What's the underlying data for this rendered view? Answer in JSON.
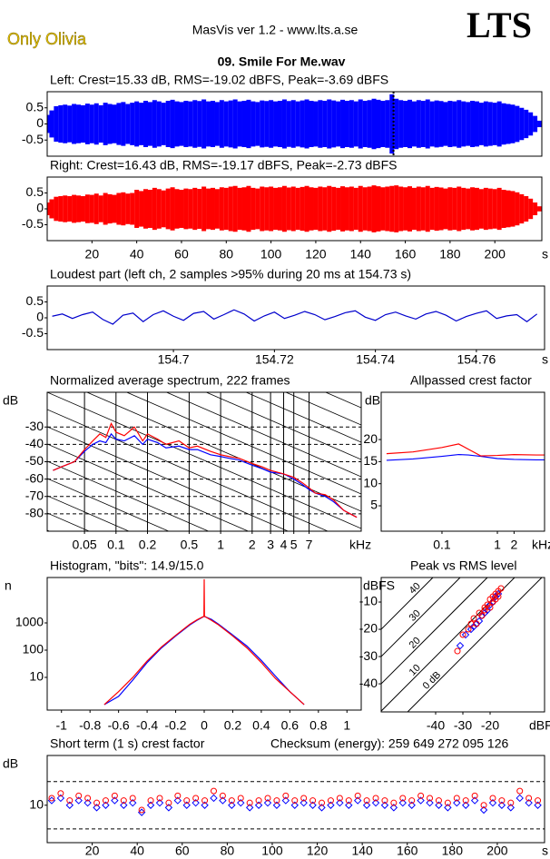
{
  "header": {
    "left_logo": "Only Olivia",
    "app": "MasVis ver 1.2 - www.lts.a.se",
    "brand": "LTS",
    "file": "09. Smile For Me.wav"
  },
  "chart_data": [
    {
      "type": "waveform",
      "title": "Left: Crest=15.33 dB, RMS=-19.02 dBFS, Peak=-3.69 dBFS",
      "color": "#0000ff",
      "xlim": [
        0,
        221
      ],
      "ylim": [
        -1,
        1
      ],
      "yticks": [
        0.5,
        0,
        -0.5
      ],
      "marker_x": 154.73,
      "x": [
        0,
        2,
        4,
        6,
        8,
        10,
        12,
        14,
        16,
        18,
        20,
        22,
        24,
        26,
        28,
        30,
        32,
        34,
        36,
        38,
        40,
        42,
        44,
        46,
        48,
        50,
        52,
        54,
        56,
        58,
        60,
        62,
        64,
        66,
        68,
        70,
        72,
        74,
        76,
        78,
        80,
        82,
        84,
        86,
        88,
        90,
        92,
        94,
        96,
        98,
        100,
        102,
        104,
        106,
        108,
        110,
        112,
        114,
        116,
        118,
        120,
        122,
        124,
        126,
        128,
        130,
        132,
        134,
        136,
        138,
        140,
        142,
        144,
        146,
        148,
        150,
        152,
        154,
        156,
        158,
        160,
        162,
        164,
        166,
        168,
        170,
        172,
        174,
        176,
        178,
        180,
        182,
        184,
        186,
        188,
        190,
        192,
        194,
        196,
        198,
        200,
        202,
        204,
        206,
        208,
        210,
        212,
        214,
        216,
        218,
        220
      ],
      "values": [
        0.28,
        0.42,
        0.55,
        0.58,
        0.6,
        0.57,
        0.62,
        0.6,
        0.58,
        0.63,
        0.6,
        0.64,
        0.58,
        0.66,
        0.62,
        0.6,
        0.65,
        0.68,
        0.62,
        0.66,
        0.7,
        0.66,
        0.72,
        0.68,
        0.74,
        0.7,
        0.66,
        0.72,
        0.75,
        0.7,
        0.68,
        0.72,
        0.7,
        0.74,
        0.71,
        0.76,
        0.7,
        0.72,
        0.68,
        0.74,
        0.7,
        0.73,
        0.76,
        0.7,
        0.72,
        0.75,
        0.7,
        0.68,
        0.73,
        0.71,
        0.74,
        0.7,
        0.72,
        0.76,
        0.71,
        0.74,
        0.7,
        0.73,
        0.76,
        0.72,
        0.7,
        0.74,
        0.72,
        0.76,
        0.73,
        0.7,
        0.75,
        0.72,
        0.74,
        0.7,
        0.76,
        0.72,
        0.74,
        0.78,
        0.75,
        0.72,
        0.74,
        0.92,
        0.78,
        0.74,
        0.72,
        0.75,
        0.7,
        0.74,
        0.72,
        0.76,
        0.7,
        0.73,
        0.71,
        0.68,
        0.72,
        0.7,
        0.74,
        0.7,
        0.68,
        0.72,
        0.7,
        0.66,
        0.7,
        0.68,
        0.66,
        0.7,
        0.64,
        0.62,
        0.6,
        0.56,
        0.5,
        0.44,
        0.36,
        0.25,
        0.1
      ]
    },
    {
      "type": "waveform",
      "title": "Right: Crest=16.43 dB, RMS=-19.17 dBFS, Peak=-2.73 dBFS",
      "color": "#ff0000",
      "xlim": [
        0,
        221
      ],
      "ylim": [
        -1,
        1
      ],
      "yticks": [
        0.5,
        0,
        -0.5
      ],
      "xticks": [
        20,
        40,
        60,
        80,
        100,
        120,
        140,
        160,
        180,
        200
      ],
      "xlabel": "s",
      "x": [
        0,
        2,
        4,
        6,
        8,
        10,
        12,
        14,
        16,
        18,
        20,
        22,
        24,
        26,
        28,
        30,
        32,
        34,
        36,
        38,
        40,
        42,
        44,
        46,
        48,
        50,
        52,
        54,
        56,
        58,
        60,
        62,
        64,
        66,
        68,
        70,
        72,
        74,
        76,
        78,
        80,
        82,
        84,
        86,
        88,
        90,
        92,
        94,
        96,
        98,
        100,
        102,
        104,
        106,
        108,
        110,
        112,
        114,
        116,
        118,
        120,
        122,
        124,
        126,
        128,
        130,
        132,
        134,
        136,
        138,
        140,
        142,
        144,
        146,
        148,
        150,
        152,
        154,
        156,
        158,
        160,
        162,
        164,
        166,
        168,
        170,
        172,
        174,
        176,
        178,
        180,
        182,
        184,
        186,
        188,
        190,
        192,
        194,
        196,
        198,
        200,
        202,
        204,
        206,
        208,
        210,
        212,
        214,
        216,
        218,
        220
      ],
      "values": [
        0.2,
        0.3,
        0.38,
        0.4,
        0.42,
        0.4,
        0.44,
        0.42,
        0.4,
        0.45,
        0.44,
        0.48,
        0.42,
        0.5,
        0.46,
        0.44,
        0.5,
        0.52,
        0.48,
        0.5,
        0.6,
        0.56,
        0.62,
        0.6,
        0.66,
        0.62,
        0.58,
        0.64,
        0.68,
        0.62,
        0.6,
        0.64,
        0.62,
        0.66,
        0.63,
        0.7,
        0.64,
        0.66,
        0.62,
        0.68,
        0.66,
        0.7,
        0.72,
        0.66,
        0.68,
        0.72,
        0.66,
        0.64,
        0.7,
        0.68,
        0.7,
        0.66,
        0.68,
        0.72,
        0.67,
        0.7,
        0.66,
        0.69,
        0.72,
        0.68,
        0.66,
        0.7,
        0.68,
        0.72,
        0.69,
        0.66,
        0.71,
        0.68,
        0.7,
        0.66,
        0.72,
        0.68,
        0.7,
        0.74,
        0.71,
        0.68,
        0.7,
        0.72,
        0.74,
        0.7,
        0.68,
        0.71,
        0.66,
        0.7,
        0.68,
        0.72,
        0.66,
        0.69,
        0.67,
        0.64,
        0.68,
        0.66,
        0.7,
        0.66,
        0.64,
        0.68,
        0.66,
        0.62,
        0.66,
        0.64,
        0.62,
        0.66,
        0.6,
        0.58,
        0.56,
        0.52,
        0.46,
        0.4,
        0.32,
        0.2,
        0.08
      ]
    },
    {
      "type": "line",
      "title": "Loudest part (left  ch, 2 samples >95% during 20 ms at 154.73 s)",
      "xlim": [
        154.675,
        154.7735
      ],
      "ylim": [
        -1,
        1
      ],
      "yticks": [
        0.5,
        0,
        -0.5
      ],
      "xticks": [
        154.7,
        154.72,
        154.74,
        154.76
      ],
      "xlabel": "s",
      "x": [
        154.676,
        154.678,
        154.68,
        154.682,
        154.684,
        154.686,
        154.688,
        154.69,
        154.692,
        154.694,
        154.696,
        154.698,
        154.7,
        154.702,
        154.704,
        154.706,
        154.708,
        154.71,
        154.712,
        154.714,
        154.716,
        154.718,
        154.72,
        154.722,
        154.724,
        154.726,
        154.728,
        154.73,
        154.732,
        154.734,
        154.736,
        154.738,
        154.74,
        154.742,
        154.744,
        154.746,
        154.748,
        154.75,
        154.752,
        154.754,
        154.756,
        154.758,
        154.76,
        154.762,
        154.764,
        154.766,
        154.768,
        154.77,
        154.772
      ],
      "series": [
        {
          "color": "#0000cc",
          "values": [
            0.05,
            0.12,
            -0.02,
            0.1,
            0.18,
            -0.05,
            -0.2,
            0.08,
            0.15,
            -0.12,
            0.1,
            0.22,
            0.05,
            -0.08,
            0.14,
            0.2,
            -0.04,
            0.1,
            0.25,
            0.12,
            -0.1,
            0.06,
            0.18,
            -0.02,
            0.08,
            0.2,
            0.1,
            -0.06,
            0.04,
            0.16,
            0.22,
            0.02,
            -0.08,
            0.1,
            0.18,
            0.06,
            -0.04,
            0.12,
            0.2,
            0.08,
            -0.1,
            0.04,
            0.14,
            0.22,
            -0.02,
            0.06,
            0.1,
            -0.12,
            0.12
          ]
        }
      ]
    },
    {
      "type": "line",
      "title": "Normalized average spectrum, 222 frames",
      "xscale": "log",
      "xlim": [
        0.022,
        22.05
      ],
      "ylim": [
        -90,
        -10
      ],
      "yticks": [
        -30,
        -40,
        -50,
        -60,
        -70,
        -80
      ],
      "ygrid": "dashed",
      "xgrid": true,
      "ylabel": "dB",
      "xlabel": "kHz",
      "xticks": [
        0.05,
        0.1,
        0.2,
        0.5,
        1,
        2,
        3,
        4,
        5,
        7
      ],
      "x": [
        0.025,
        0.03,
        0.04,
        0.05,
        0.06,
        0.07,
        0.08,
        0.09,
        0.1,
        0.12,
        0.15,
        0.18,
        0.2,
        0.25,
        0.3,
        0.4,
        0.5,
        0.6,
        0.8,
        1,
        1.2,
        1.5,
        2,
        2.5,
        3,
        4,
        5,
        6,
        7,
        8,
        10,
        12,
        15,
        20
      ],
      "series": [
        {
          "color": "#0000ff",
          "values": [
            -55,
            -53,
            -50,
            -44,
            -40,
            -38,
            -39,
            -34,
            -37,
            -38,
            -35,
            -40,
            -37,
            -39,
            -42,
            -41,
            -43,
            -43,
            -46,
            -47,
            -48,
            -49,
            -52,
            -54,
            -56,
            -57,
            -60,
            -63,
            -66,
            -68,
            -70,
            -73,
            -78,
            -82
          ]
        },
        {
          "color": "#ff0000",
          "values": [
            -55,
            -53,
            -50,
            -43,
            -38,
            -34,
            -36,
            -28,
            -33,
            -35,
            -30,
            -38,
            -34,
            -37,
            -40,
            -38,
            -42,
            -41,
            -44,
            -46,
            -47,
            -48,
            -51,
            -53,
            -55,
            -57,
            -59,
            -62,
            -65,
            -68,
            -69,
            -72,
            -78,
            -82
          ]
        }
      ]
    },
    {
      "type": "line",
      "title": "Allpassed crest factor",
      "xscale": "log",
      "xlim": [
        0.008,
        7.1
      ],
      "ylim": [
        -0.75,
        30.7
      ],
      "yticks": [
        20,
        15,
        10,
        5
      ],
      "ylabel": "dB",
      "xlabel": "kHz",
      "xticks": [
        0.1,
        1,
        2
      ],
      "x": [
        0.01,
        0.03,
        0.1,
        0.2,
        0.3,
        0.5,
        1,
        2,
        5,
        7
      ],
      "series": [
        {
          "color": "#0000ff",
          "values": [
            15.3,
            15.6,
            16.2,
            16.6,
            16.5,
            16.2,
            15.7,
            15.5,
            15.4,
            15.4
          ]
        },
        {
          "color": "#ff0000",
          "values": [
            16.8,
            17.2,
            18.2,
            19,
            17.8,
            16.3,
            16.4,
            16.6,
            16.5,
            16.5
          ]
        }
      ]
    },
    {
      "type": "line",
      "title": "Histogram, \"bits\": 14.9/15.0",
      "yscale": "log",
      "xlim": [
        -1.1,
        1.1
      ],
      "ylim": [
        0.63,
        46400
      ],
      "yticks": [
        10,
        100,
        1000
      ],
      "ylabel": "n",
      "xticks": [
        -1,
        -0.8,
        -0.6,
        -0.4,
        -0.2,
        0,
        0.2,
        0.4,
        0.6,
        0.8,
        1
      ],
      "x": [
        -0.7,
        -0.6,
        -0.5,
        -0.4,
        -0.3,
        -0.2,
        -0.1,
        -0.05,
        -0.002,
        0,
        0.002,
        0.05,
        0.1,
        0.2,
        0.3,
        0.4,
        0.5,
        0.6,
        0.7
      ],
      "series": [
        {
          "color": "#0000ff",
          "values": [
            1,
            2,
            8,
            35,
            120,
            330,
            850,
            1250,
            1720,
            1750,
            1720,
            1350,
            900,
            360,
            140,
            42,
            11,
            3,
            1
          ]
        },
        {
          "color": "#ff0000",
          "values": [
            1,
            3,
            10,
            40,
            130,
            350,
            900,
            1300,
            1750,
            40000,
            1750,
            1250,
            850,
            330,
            120,
            35,
            9,
            3,
            1
          ]
        }
      ]
    },
    {
      "type": "scatter",
      "title": "Peak vs RMS level",
      "xlim": [
        -60,
        0
      ],
      "ylim": [
        -50.3,
        -1
      ],
      "yticks": [
        -10,
        -20,
        -30,
        -40
      ],
      "xticks": [
        -40,
        -30,
        -20
      ],
      "ylabel": "dBFS",
      "xlabel": "dBFS",
      "crest_lines": [
        {
          "value": 0,
          "label": "0 dB"
        },
        10,
        20,
        30,
        40
      ],
      "series": [
        {
          "color": "#0000ff",
          "marker": "diamond",
          "x": [
            -31,
            -29,
            -27,
            -26,
            -25,
            -24,
            -23,
            -22,
            -21,
            -20,
            -19,
            -18,
            -17
          ],
          "values": [
            -26,
            -22,
            -20,
            -19,
            -18,
            -17,
            -15,
            -14,
            -13,
            -11,
            -10,
            -8,
            -7
          ]
        },
        {
          "color": "#ff0000",
          "marker": "circle",
          "x": [
            -32,
            -30,
            -28,
            -27,
            -26,
            -25,
            -24,
            -23,
            -22,
            -22,
            -21,
            -20,
            -20,
            -19,
            -19,
            -18,
            -18,
            -17,
            -17,
            -16
          ],
          "values": [
            -28,
            -22,
            -20,
            -18,
            -16,
            -18,
            -14,
            -15,
            -12,
            -13,
            -11,
            -12,
            -9,
            -10,
            -8,
            -9,
            -7,
            -6,
            -8,
            -5
          ]
        }
      ]
    },
    {
      "type": "scatter",
      "title": "Short term (1 s) crest factor",
      "checksum": "Checksum (energy):   259 649 272 095 126",
      "xlim": [
        0,
        221
      ],
      "ylim": [
        -5.8,
        31
      ],
      "yticks": [
        10
      ],
      "reference_lines": [
        0,
        20
      ],
      "ylabel": "dB",
      "xlabel": "s",
      "xticks": [
        20,
        40,
        60,
        80,
        100,
        120,
        140,
        160,
        180,
        200
      ],
      "x": [
        2,
        6,
        10,
        14,
        18,
        22,
        26,
        30,
        34,
        38,
        42,
        46,
        50,
        54,
        58,
        62,
        66,
        70,
        74,
        78,
        82,
        86,
        90,
        94,
        98,
        102,
        106,
        110,
        114,
        118,
        122,
        126,
        130,
        134,
        138,
        142,
        146,
        150,
        154,
        158,
        162,
        166,
        170,
        174,
        178,
        182,
        186,
        190,
        194,
        198,
        202,
        206,
        210,
        214,
        218
      ],
      "series": [
        {
          "color": "#0000ff",
          "marker": "diamond",
          "values": [
            12,
            13,
            10,
            12,
            11,
            9,
            10,
            12,
            10,
            11,
            7,
            10,
            11,
            9,
            12,
            10,
            11,
            10,
            13,
            12,
            10,
            11,
            9,
            10,
            11,
            10,
            12,
            10,
            11,
            10,
            9,
            10,
            11,
            10,
            12,
            10,
            11,
            10,
            9,
            11,
            10,
            12,
            11,
            10,
            9,
            11,
            10,
            12,
            8,
            11,
            10,
            9,
            13,
            11,
            10
          ]
        },
        {
          "color": "#ff0000",
          "marker": "circle",
          "values": [
            13,
            15,
            12,
            14,
            13,
            11,
            12,
            14,
            12,
            13,
            8,
            12,
            13,
            11,
            14,
            12,
            13,
            12,
            16,
            14,
            12,
            13,
            11,
            12,
            13,
            12,
            14,
            12,
            13,
            12,
            11,
            12,
            13,
            12,
            14,
            12,
            13,
            12,
            11,
            13,
            12,
            14,
            13,
            12,
            11,
            13,
            12,
            14,
            10,
            13,
            12,
            11,
            16,
            13,
            12
          ]
        }
      ]
    }
  ]
}
